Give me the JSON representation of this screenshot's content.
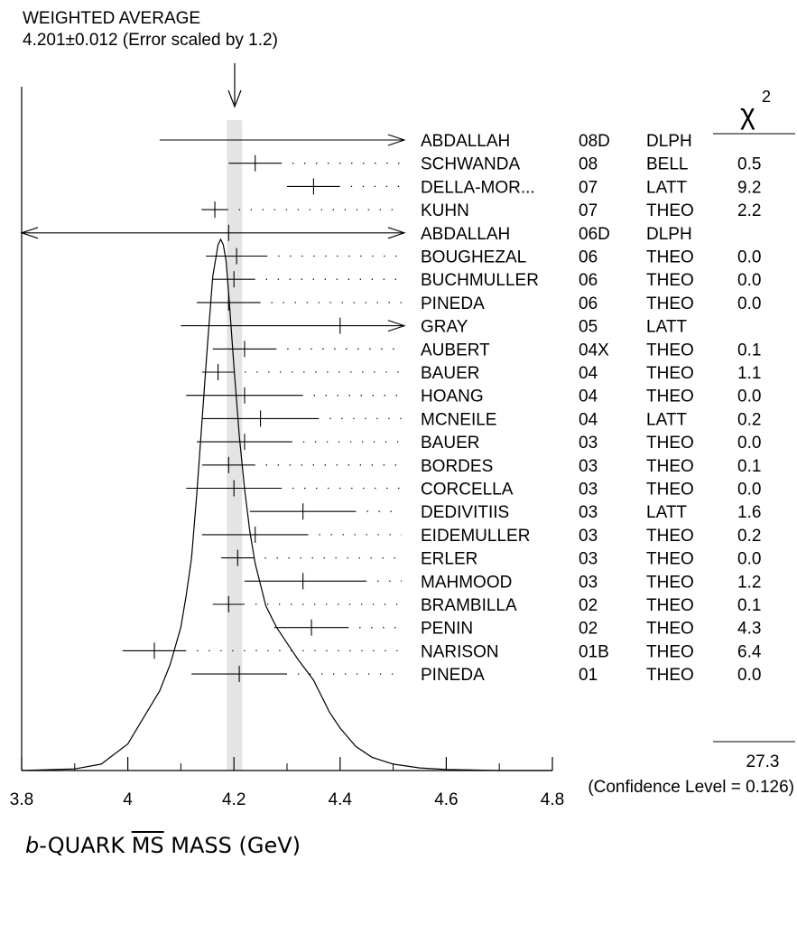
{
  "header": {
    "title": "WEIGHTED AVERAGE",
    "subtitle": "4.201±0.012 (Error scaled by 1.2)"
  },
  "axis_title": {
    "prefix": "b",
    "middle": "-QUARK ",
    "ms": "MS",
    "suffix": " MASS (GeV)"
  },
  "chi2_header": "χ",
  "chi2_exponent": "2",
  "summary": {
    "chi2_total": "27.3",
    "confidence_level": "(Confidence Level = 0.126)"
  },
  "chart_data": {
    "type": "scatter",
    "xlim": [
      3.8,
      4.8
    ],
    "x_ticks": [
      "3.8",
      "4",
      "4.2",
      "4.4",
      "4.6",
      "4.8"
    ],
    "weighted_average": {
      "value": 4.201,
      "error": 0.012,
      "scale_factor": 1.2
    },
    "measurements": [
      {
        "author": "ABDALLAH",
        "year": "08D",
        "tech": "DLPH",
        "chi2": "",
        "value": 4.46,
        "lo": 4.06,
        "hi": 4.8,
        "arrow_left": false,
        "arrow_right": true,
        "show_center": false
      },
      {
        "author": "SCHWANDA",
        "year": "08",
        "tech": "BELL",
        "chi2": "0.5",
        "value": 4.24,
        "lo": 4.19,
        "hi": 4.29,
        "arrow_left": false,
        "arrow_right": false,
        "show_center": true
      },
      {
        "author": "DELLA-MOR...",
        "year": "07",
        "tech": "LATT",
        "chi2": "9.2",
        "value": 4.35,
        "lo": 4.3,
        "hi": 4.4,
        "arrow_left": false,
        "arrow_right": false,
        "show_center": true
      },
      {
        "author": "KUHN",
        "year": "07",
        "tech": "THEO",
        "chi2": "2.2",
        "value": 4.164,
        "lo": 4.139,
        "hi": 4.189,
        "arrow_left": false,
        "arrow_right": false,
        "show_center": true
      },
      {
        "author": "ABDALLAH",
        "year": "06D",
        "tech": "DLPH",
        "chi2": "",
        "value": 4.19,
        "lo": 3.8,
        "hi": 4.8,
        "arrow_left": true,
        "arrow_right": true,
        "show_center": true
      },
      {
        "author": "BOUGHEZAL",
        "year": "06",
        "tech": "THEO",
        "chi2": "0.0",
        "value": 4.205,
        "lo": 4.147,
        "hi": 4.263,
        "arrow_left": false,
        "arrow_right": false,
        "show_center": true
      },
      {
        "author": "BUCHMULLER",
        "year": "06",
        "tech": "THEO",
        "chi2": "0.0",
        "value": 4.2,
        "lo": 4.16,
        "hi": 4.24,
        "arrow_left": false,
        "arrow_right": false,
        "show_center": true
      },
      {
        "author": "PINEDA",
        "year": "06",
        "tech": "THEO",
        "chi2": "0.0",
        "value": 4.19,
        "lo": 4.13,
        "hi": 4.25,
        "arrow_left": false,
        "arrow_right": false,
        "show_center": true
      },
      {
        "author": "GRAY",
        "year": "05",
        "tech": "LATT",
        "chi2": "",
        "value": 4.4,
        "lo": 4.1,
        "hi": 4.8,
        "arrow_left": false,
        "arrow_right": true,
        "show_center": true
      },
      {
        "author": "AUBERT",
        "year": "04X",
        "tech": "THEO",
        "chi2": "0.1",
        "value": 4.22,
        "lo": 4.16,
        "hi": 4.28,
        "arrow_left": false,
        "arrow_right": false,
        "show_center": true
      },
      {
        "author": "BAUER",
        "year": "04",
        "tech": "THEO",
        "chi2": "1.1",
        "value": 4.17,
        "lo": 4.14,
        "hi": 4.2,
        "arrow_left": false,
        "arrow_right": false,
        "show_center": true
      },
      {
        "author": "HOANG",
        "year": "04",
        "tech": "THEO",
        "chi2": "0.0",
        "value": 4.22,
        "lo": 4.11,
        "hi": 4.33,
        "arrow_left": false,
        "arrow_right": false,
        "show_center": true
      },
      {
        "author": "MCNEILE",
        "year": "04",
        "tech": "LATT",
        "chi2": "0.2",
        "value": 4.25,
        "lo": 4.14,
        "hi": 4.36,
        "arrow_left": false,
        "arrow_right": false,
        "show_center": true
      },
      {
        "author": "BAUER",
        "year": "03",
        "tech": "THEO",
        "chi2": "0.0",
        "value": 4.22,
        "lo": 4.13,
        "hi": 4.31,
        "arrow_left": false,
        "arrow_right": false,
        "show_center": true
      },
      {
        "author": "BORDES",
        "year": "03",
        "tech": "THEO",
        "chi2": "0.1",
        "value": 4.19,
        "lo": 4.14,
        "hi": 4.24,
        "arrow_left": false,
        "arrow_right": false,
        "show_center": true
      },
      {
        "author": "CORCELLA",
        "year": "03",
        "tech": "THEO",
        "chi2": "0.0",
        "value": 4.2,
        "lo": 4.11,
        "hi": 4.29,
        "arrow_left": false,
        "arrow_right": false,
        "show_center": true
      },
      {
        "author": "DEDIVITIIS",
        "year": "03",
        "tech": "LATT",
        "chi2": "1.6",
        "value": 4.33,
        "lo": 4.23,
        "hi": 4.43,
        "arrow_left": false,
        "arrow_right": false,
        "show_center": true
      },
      {
        "author": "EIDEMULLER",
        "year": "03",
        "tech": "THEO",
        "chi2": "0.2",
        "value": 4.24,
        "lo": 4.14,
        "hi": 4.34,
        "arrow_left": false,
        "arrow_right": false,
        "show_center": true
      },
      {
        "author": "ERLER",
        "year": "03",
        "tech": "THEO",
        "chi2": "0.0",
        "value": 4.207,
        "lo": 4.176,
        "hi": 4.238,
        "arrow_left": false,
        "arrow_right": false,
        "show_center": true
      },
      {
        "author": "MAHMOOD",
        "year": "03",
        "tech": "THEO",
        "chi2": "1.2",
        "value": 4.33,
        "lo": 4.22,
        "hi": 4.45,
        "arrow_left": false,
        "arrow_right": false,
        "show_center": true
      },
      {
        "author": "BRAMBILLA",
        "year": "02",
        "tech": "THEO",
        "chi2": "0.1",
        "value": 4.19,
        "lo": 4.16,
        "hi": 4.22,
        "arrow_left": false,
        "arrow_right": false,
        "show_center": true
      },
      {
        "author": "PENIN",
        "year": "02",
        "tech": "THEO",
        "chi2": "4.3",
        "value": 4.346,
        "lo": 4.276,
        "hi": 4.416,
        "arrow_left": false,
        "arrow_right": false,
        "show_center": true
      },
      {
        "author": "NARISON",
        "year": "01B",
        "tech": "THEO",
        "chi2": "6.4",
        "value": 4.05,
        "lo": 3.99,
        "hi": 4.11,
        "arrow_left": false,
        "arrow_right": false,
        "show_center": true
      },
      {
        "author": "PINEDA",
        "year": "01",
        "tech": "THEO",
        "chi2": "0.0",
        "value": 4.21,
        "lo": 4.12,
        "hi": 4.3,
        "arrow_left": false,
        "arrow_right": false,
        "show_center": true
      }
    ],
    "ideogram": {
      "x": [
        3.8,
        3.9,
        3.95,
        4.0,
        4.03,
        4.06,
        4.08,
        4.1,
        4.11,
        4.12,
        4.13,
        4.14,
        4.15,
        4.16,
        4.17,
        4.175,
        4.18,
        4.185,
        4.19,
        4.2,
        4.21,
        4.22,
        4.23,
        4.24,
        4.26,
        4.28,
        4.3,
        4.32,
        4.35,
        4.38,
        4.4,
        4.43,
        4.46,
        4.5,
        4.55,
        4.6,
        4.7,
        4.8
      ],
      "y": [
        0.0,
        0.003,
        0.012,
        0.05,
        0.1,
        0.15,
        0.2,
        0.27,
        0.33,
        0.4,
        0.52,
        0.66,
        0.8,
        0.93,
        0.99,
        1.0,
        0.99,
        0.96,
        0.9,
        0.76,
        0.63,
        0.53,
        0.45,
        0.39,
        0.31,
        0.27,
        0.24,
        0.21,
        0.17,
        0.11,
        0.08,
        0.045,
        0.025,
        0.012,
        0.005,
        0.002,
        0.0,
        0.0
      ]
    },
    "colors": {
      "band": "#e4e4e4",
      "ink": "#000000"
    }
  }
}
